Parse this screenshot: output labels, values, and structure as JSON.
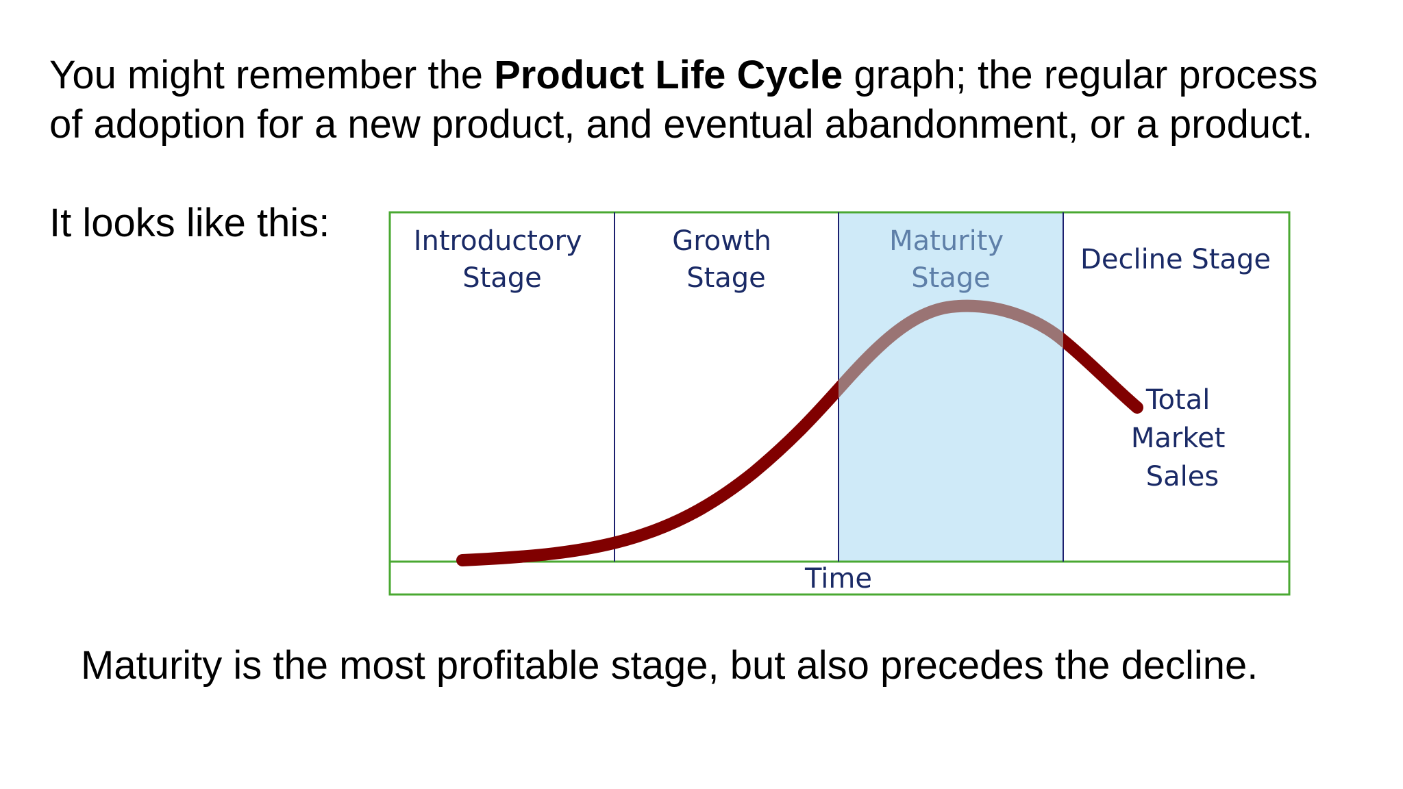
{
  "intro": {
    "prefix": "You might remember the ",
    "emphasis": "Product Life Cycle",
    "line1_suffix": " graph; the regular process",
    "line2": "of adoption for a new product, and eventual abandonment, or a product."
  },
  "lead_in": "It looks like this:",
  "closing": "Maturity is the most profitable stage, but also precedes the decline.",
  "diagram": {
    "stages": [
      {
        "line1": "Introductory",
        "line2": "Stage"
      },
      {
        "line1": "Growth",
        "line2": "Stage"
      },
      {
        "line1": "Maturity",
        "line2": "Stage"
      },
      {
        "line1": "Decline Stage",
        "line2": ""
      }
    ],
    "axis_label": "Time",
    "curve_label": {
      "line1": "Total",
      "line2": "Market",
      "line3": "Sales"
    },
    "colors": {
      "frame": "#4aa832",
      "divider": "#1c1f6e",
      "highlight": "#cfeaf8",
      "curve": "#800000",
      "curve_in_highlight": "#9a7474",
      "label_text": "#1a2a66",
      "faded_label_text": "#5e7fa8"
    }
  }
}
